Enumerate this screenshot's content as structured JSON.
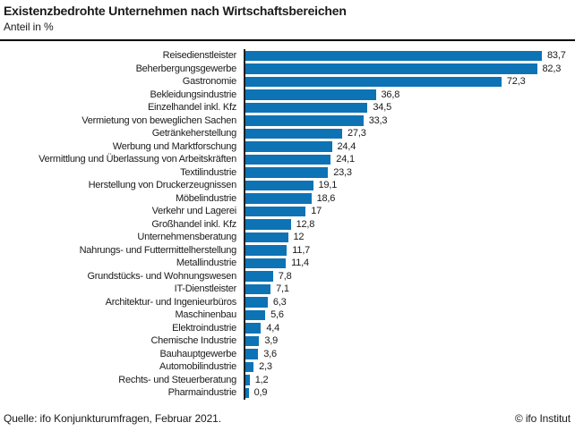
{
  "header": {
    "title": "Existenzbedrohte Unternehmen nach Wirtschaftsbereichen",
    "subtitle": "Anteil in %"
  },
  "footer": {
    "source": "Quelle: ifo Konjunkturumfragen, Februar 2021.",
    "copyright": "© ifo Institut"
  },
  "colors": {
    "bar": "#0d73b5",
    "axis": "#1f1f1f",
    "text": "#1a1a1a",
    "header_rule": "#000000"
  },
  "chart_data": {
    "type": "bar",
    "orientation": "horizontal",
    "title": "Existenzbedrohte Unternehmen nach Wirtschaftsbereichen",
    "subtitle": "Anteil in %",
    "xlabel": "",
    "ylabel": "",
    "xlim": [
      0,
      85
    ],
    "grid": false,
    "legend": false,
    "value_labels_shown": true,
    "decimal_separator": ",",
    "categories": [
      "Reisedienstleister",
      "Beherbergungsgewerbe",
      "Gastronomie",
      "Bekleidungsindustrie",
      "Einzelhandel inkl. Kfz",
      "Vermietung von beweglichen Sachen",
      "Getränkeherstellung",
      "Werbung und Marktforschung",
      "Vermittlung und Überlassung von Arbeitskräften",
      "Textilindustrie",
      "Herstellung von Druckerzeugnissen",
      "Möbelindustrie",
      "Verkehr und Lagerei",
      "Großhandel inkl. Kfz",
      "Unternehmensberatung",
      "Nahrungs- und Futtermittelherstellung",
      "Metallindustrie",
      "Grundstücks- und Wohnungswesen",
      "IT-Dienstleister",
      "Architektur- und Ingenieurbüros",
      "Maschinenbau",
      "Elektroindustrie",
      "Chemische Industrie",
      "Bauhauptgewerbe",
      "Automobilindustrie",
      "Rechts- und Steuerberatung",
      "Pharmaindustrie"
    ],
    "values": [
      83.7,
      82.3,
      72.3,
      36.8,
      34.5,
      33.3,
      27.3,
      24.4,
      24.1,
      23.3,
      19.1,
      18.6,
      17,
      12.8,
      12,
      11.7,
      11.4,
      7.8,
      7.1,
      6.3,
      5.6,
      4.4,
      3.9,
      3.6,
      2.3,
      1.2,
      0.9
    ],
    "value_labels": [
      "83,7",
      "82,3",
      "72,3",
      "36,8",
      "34,5",
      "33,3",
      "27,3",
      "24,4",
      "24,1",
      "23,3",
      "19,1",
      "18,6",
      "17",
      "12,8",
      "12",
      "11,7",
      "11,4",
      "7,8",
      "7,1",
      "6,3",
      "5,6",
      "4,4",
      "3,9",
      "3,6",
      "2,3",
      "1,2",
      "0,9"
    ]
  }
}
